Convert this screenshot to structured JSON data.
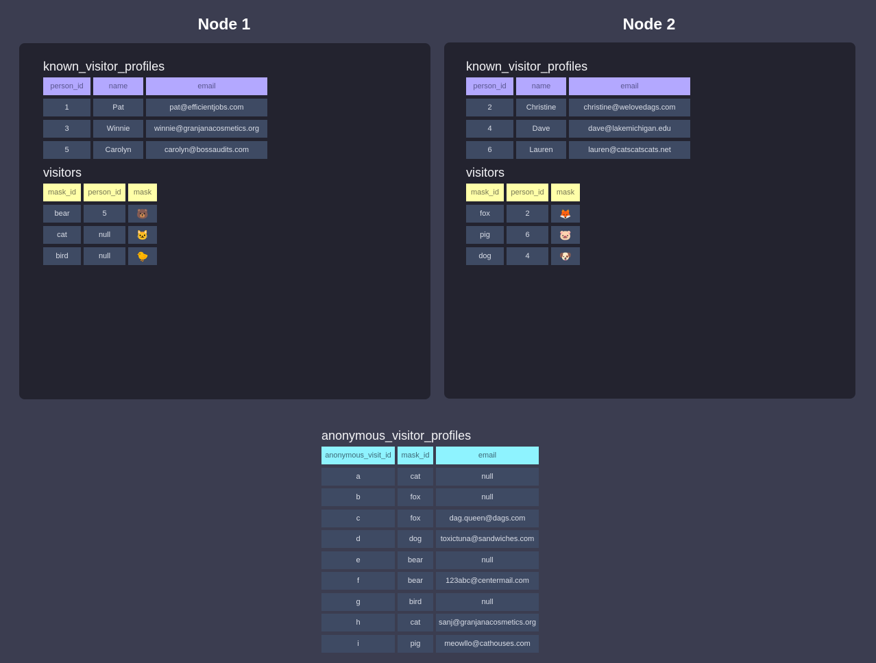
{
  "nodes": [
    {
      "title": "Node 1",
      "known_visitor_profiles": {
        "name": "known_visitor_profiles",
        "columns": [
          "person_id",
          "name",
          "email"
        ],
        "rows": [
          [
            "1",
            "Pat",
            "pat@efficientjobs.com"
          ],
          [
            "3",
            "Winnie",
            "winnie@granjanacosmetics.org"
          ],
          [
            "5",
            "Carolyn",
            "carolyn@bossaudits.com"
          ]
        ]
      },
      "visitors": {
        "name": "visitors",
        "columns": [
          "mask_id",
          "person_id",
          "mask"
        ],
        "rows": [
          [
            "bear",
            "5",
            "🐻"
          ],
          [
            "cat",
            "null",
            "🐱"
          ],
          [
            "bird",
            "null",
            "🐤"
          ]
        ]
      }
    },
    {
      "title": "Node 2",
      "known_visitor_profiles": {
        "name": "known_visitor_profiles",
        "columns": [
          "person_id",
          "name",
          "email"
        ],
        "rows": [
          [
            "2",
            "Christine",
            "christine@welovedags.com"
          ],
          [
            "4",
            "Dave",
            "dave@lakemichigan.edu"
          ],
          [
            "6",
            "Lauren",
            "lauren@catscatscats.net"
          ]
        ]
      },
      "visitors": {
        "name": "visitors",
        "columns": [
          "mask_id",
          "person_id",
          "mask"
        ],
        "rows": [
          [
            "fox",
            "2",
            "🦊"
          ],
          [
            "pig",
            "6",
            "🐷"
          ],
          [
            "dog",
            "4",
            "🐶"
          ]
        ]
      }
    }
  ],
  "anonymous_visitor_profiles": {
    "name": "anonymous_visitor_profiles",
    "columns": [
      "anonymous_visit_id",
      "mask_id",
      "email"
    ],
    "rows": [
      [
        "a",
        "cat",
        "null"
      ],
      [
        "b",
        "fox",
        "null"
      ],
      [
        "c",
        "fox",
        "dag.queen@dags.com"
      ],
      [
        "d",
        "dog",
        "toxictuna@sandwiches.com"
      ],
      [
        "e",
        "bear",
        "null"
      ],
      [
        "f",
        "bear",
        "123abc@centermail.com"
      ],
      [
        "g",
        "bird",
        "null"
      ],
      [
        "h",
        "cat",
        "sanj@granjanacosmetics.org"
      ],
      [
        "i",
        "pig",
        "meowllo@cathouses.com"
      ]
    ]
  },
  "colors": {
    "background": "#3b3d50",
    "panel": "#23232f",
    "cell": "#3e4a63",
    "known_header": "#b3a8ff",
    "visitors_header": "#ffffa8",
    "anonymous_header": "#8ef3ff"
  }
}
